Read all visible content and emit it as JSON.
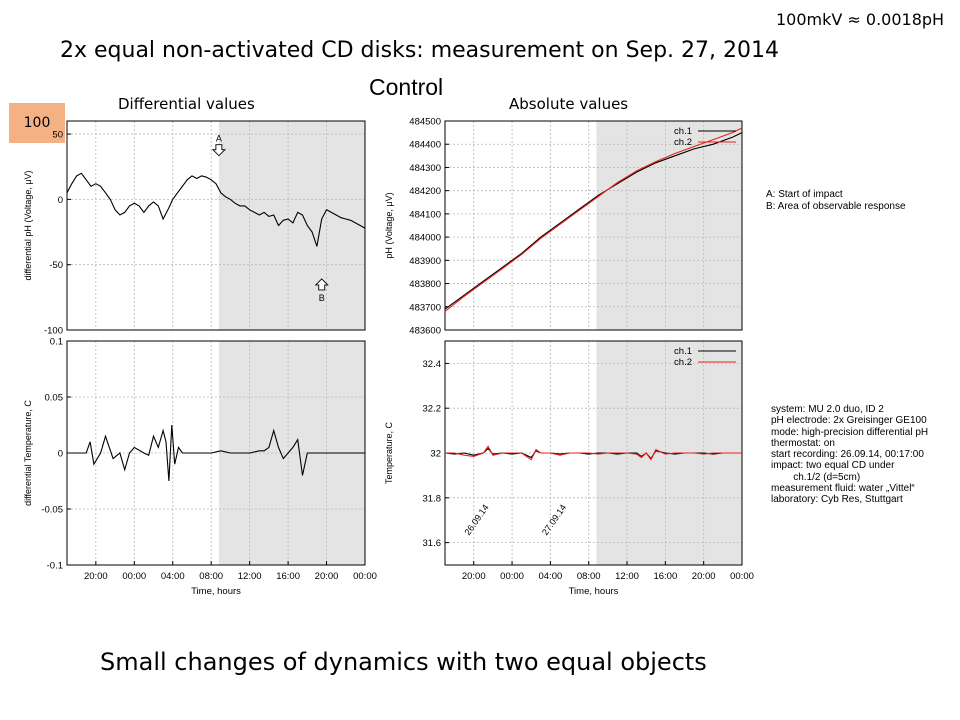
{
  "header": {
    "conversion_note": "100mkV ≈ 0.0018pH",
    "title": "2x equal non-activated CD disks: measurement on Sep. 27, 2014",
    "control_label": "Control",
    "left_caption": "Differential values",
    "right_caption": "Absolute values",
    "badge": "100"
  },
  "legend_notes": {
    "a": "A: Start of impact",
    "b": "B: Area of observable response"
  },
  "info_lines": [
    "system: MU 2.0 duo, ID 2",
    "pH electrode: 2x Greisinger GE100",
    "mode: high-precision differential pH",
    "thermostat: on",
    "start recording: 26.09.14, 00:17:00",
    "impact: two equal CD under",
    "        ch.1/2 (d=5cm)",
    "measurement fluid: water „Vittel“",
    "laboratory: Cyb Res, Stuttgart"
  ],
  "footer": {
    "conclusion": "Small changes of dynamics with two equal objects"
  },
  "colors": {
    "ch1": "#000000",
    "ch2": "#e8211c",
    "shade": "#e4e4e4",
    "badge": "#f4b183"
  },
  "chart_data": [
    {
      "id": "diff-ph",
      "type": "line",
      "ylabel": "differential pH (Voltage, μV)",
      "xlabel": "",
      "ylim": [
        -100,
        60
      ],
      "yticks": [
        "50",
        "0",
        "-50",
        "-100"
      ],
      "ytick_values": [
        50,
        0,
        -50,
        -100
      ],
      "xlim": [
        17,
        48
      ],
      "shade_x": [
        32.8,
        48
      ],
      "grid": true,
      "annotations": [
        {
          "text": "A",
          "x": 32.8,
          "y": 35
        },
        {
          "text": "B",
          "x": 43.5,
          "y": -67
        }
      ],
      "series": [
        {
          "x": [
            17,
            17.5,
            18,
            18.5,
            19,
            19.5,
            20,
            20.5,
            21,
            21.5,
            22,
            22.5,
            23,
            23.5,
            24,
            24.5,
            25,
            25.5,
            26,
            26.5,
            27,
            27.5,
            28,
            28.5,
            29,
            29.5,
            30,
            30.5,
            31,
            31.5,
            32,
            32.5,
            33,
            33.5,
            34,
            34.5,
            35,
            35.5,
            36,
            36.5,
            37,
            37.5,
            38,
            38.5,
            39,
            39.5,
            40,
            40.5,
            41,
            41.5,
            42,
            42.5,
            43,
            43.5,
            44,
            44.5,
            45,
            45.5,
            46,
            46.5,
            47,
            47.5,
            48
          ],
          "y": [
            5,
            12,
            18,
            20,
            15,
            10,
            12,
            10,
            5,
            0,
            -8,
            -12,
            -10,
            -5,
            -3,
            -5,
            -10,
            -5,
            -2,
            -5,
            -15,
            -8,
            0,
            5,
            10,
            15,
            18,
            16,
            18,
            17,
            15,
            12,
            5,
            2,
            0,
            -3,
            -5,
            -5,
            -8,
            -10,
            -12,
            -10,
            -13,
            -12,
            -20,
            -16,
            -15,
            -18,
            -10,
            -12,
            -20,
            -25,
            -36,
            -15,
            -8,
            -10,
            -12,
            -14,
            -15,
            -16,
            -18,
            -20,
            -22
          ]
        }
      ]
    },
    {
      "id": "diff-temp",
      "type": "line",
      "ylabel": "differential Temperature, C",
      "xlabel": "Time, hours",
      "ylim": [
        -0.1,
        0.1
      ],
      "yticks": [
        "0.1",
        "0.05",
        "0",
        "-0.05",
        "-0.1"
      ],
      "ytick_values": [
        0.1,
        0.05,
        0,
        -0.05,
        -0.1
      ],
      "xlim": [
        17,
        48
      ],
      "xticks": [
        "20:00",
        "00:00",
        "04:00",
        "08:00",
        "12:00",
        "16:00",
        "20:00",
        "00:00"
      ],
      "xtick_values": [
        20,
        24,
        28,
        32,
        36,
        40,
        44,
        48
      ],
      "shade_x": [
        32.8,
        48
      ],
      "grid": true,
      "series": [
        {
          "x": [
            17,
            18,
            19,
            19.4,
            19.8,
            20.5,
            21,
            21.4,
            21.8,
            22.5,
            23,
            23.5,
            24,
            25,
            25.5,
            26,
            26.5,
            27,
            27.3,
            27.6,
            27.9,
            28.2,
            28.6,
            29,
            30,
            31,
            32,
            33,
            34,
            35,
            36,
            37,
            37.5,
            38,
            38.5,
            39,
            39.5,
            40,
            40.5,
            41,
            41.5,
            42,
            43,
            44,
            45,
            46,
            47,
            48
          ],
          "y": [
            0,
            0,
            0,
            0.01,
            -0.01,
            0,
            0.015,
            0.005,
            -0.005,
            0,
            -0.015,
            0,
            0.005,
            0,
            -0.002,
            0.015,
            0.005,
            0.02,
            0.01,
            -0.025,
            0.025,
            -0.01,
            0.005,
            0,
            0,
            0,
            0,
            0.002,
            0,
            0,
            0,
            0.002,
            0.002,
            0.005,
            0.02,
            0.005,
            -0.005,
            0,
            0.005,
            0.012,
            -0.02,
            0,
            0,
            0,
            0,
            0,
            0,
            0
          ]
        }
      ]
    },
    {
      "id": "abs-ph",
      "type": "line",
      "ylabel": "pH (Voltage, μV)",
      "xlabel": "",
      "ylim": [
        483600,
        484500
      ],
      "yticks": [
        "484500",
        "484400",
        "484300",
        "484200",
        "484100",
        "484000",
        "483900",
        "483800",
        "483700",
        "483600"
      ],
      "ytick_values": [
        484500,
        484400,
        484300,
        484200,
        484100,
        484000,
        483900,
        483800,
        483700,
        483600
      ],
      "xlim": [
        17,
        48
      ],
      "shade_x": [
        32.8,
        48
      ],
      "grid": true,
      "series": [
        {
          "name": "ch.1",
          "x": [
            17,
            19,
            21,
            23,
            25,
            27,
            29,
            31,
            33,
            35,
            37,
            39,
            41,
            43,
            45,
            47,
            48
          ],
          "y": [
            483690,
            483750,
            483810,
            483870,
            483930,
            484000,
            484060,
            484120,
            484180,
            484230,
            484280,
            484320,
            484350,
            484380,
            484400,
            484430,
            484450
          ]
        },
        {
          "name": "ch.2",
          "x": [
            17,
            19,
            21,
            23,
            25,
            27,
            29,
            31,
            33,
            35,
            37,
            39,
            41,
            43,
            45,
            47,
            48
          ],
          "y": [
            483680,
            483745,
            483805,
            483865,
            483925,
            483995,
            484055,
            484115,
            484175,
            484235,
            484285,
            484325,
            484360,
            484390,
            484420,
            484450,
            484470
          ]
        }
      ]
    },
    {
      "id": "abs-temp",
      "type": "line",
      "ylabel": "Temperature, C",
      "xlabel": "Time, hours",
      "ylim": [
        31.5,
        32.5
      ],
      "yticks": [
        "32.4",
        "32.2",
        "32",
        "31.8",
        "31.6"
      ],
      "ytick_values": [
        32.4,
        32.2,
        32,
        31.8,
        31.6
      ],
      "xlim": [
        17,
        48
      ],
      "xticks": [
        "20:00",
        "00:00",
        "04:00",
        "08:00",
        "12:00",
        "16:00",
        "20:00",
        "00:00"
      ],
      "xtick_values": [
        20,
        24,
        28,
        32,
        36,
        40,
        44,
        48
      ],
      "shade_x": [
        32.8,
        48
      ],
      "grid": true,
      "date_labels": [
        {
          "text": "26.09.14",
          "x": 19.5,
          "y": 31.63
        },
        {
          "text": "27.09.14",
          "x": 27.6,
          "y": 31.63
        }
      ],
      "series": [
        {
          "name": "ch.1",
          "x": [
            17,
            18,
            19,
            20,
            21,
            21.5,
            22,
            23,
            24,
            25,
            26,
            26.5,
            27,
            28,
            29,
            30,
            31,
            32,
            33,
            34,
            35,
            36,
            37,
            37.5,
            38,
            38.5,
            39,
            40,
            41,
            42,
            43,
            44,
            45,
            46,
            47,
            48
          ],
          "y": [
            32,
            31.995,
            32,
            31.99,
            32,
            32.02,
            31.995,
            32,
            31.995,
            32,
            31.98,
            32.01,
            32,
            32,
            31.995,
            32,
            32,
            31.995,
            32,
            32,
            31.995,
            32,
            32,
            31.985,
            32,
            31.975,
            32.01,
            32,
            31.995,
            32,
            32,
            32,
            31.995,
            32,
            32,
            32
          ]
        },
        {
          "name": "ch.2",
          "x": [
            17,
            18,
            19,
            20,
            21,
            21.5,
            22,
            23,
            24,
            25,
            26,
            26.5,
            27,
            28,
            29,
            30,
            31,
            32,
            33,
            34,
            35,
            36,
            37,
            37.5,
            38,
            38.5,
            39,
            40,
            41,
            42,
            43,
            44,
            45,
            46,
            47,
            48
          ],
          "y": [
            32,
            32,
            31.99,
            31.985,
            32,
            32.03,
            31.99,
            32,
            32,
            32,
            31.97,
            32.015,
            32,
            32,
            31.99,
            32,
            32,
            32,
            31.995,
            32,
            32,
            32,
            31.995,
            31.98,
            32,
            31.97,
            32.015,
            31.995,
            32,
            32,
            32,
            31.995,
            32,
            32,
            32,
            32
          ]
        }
      ]
    }
  ]
}
